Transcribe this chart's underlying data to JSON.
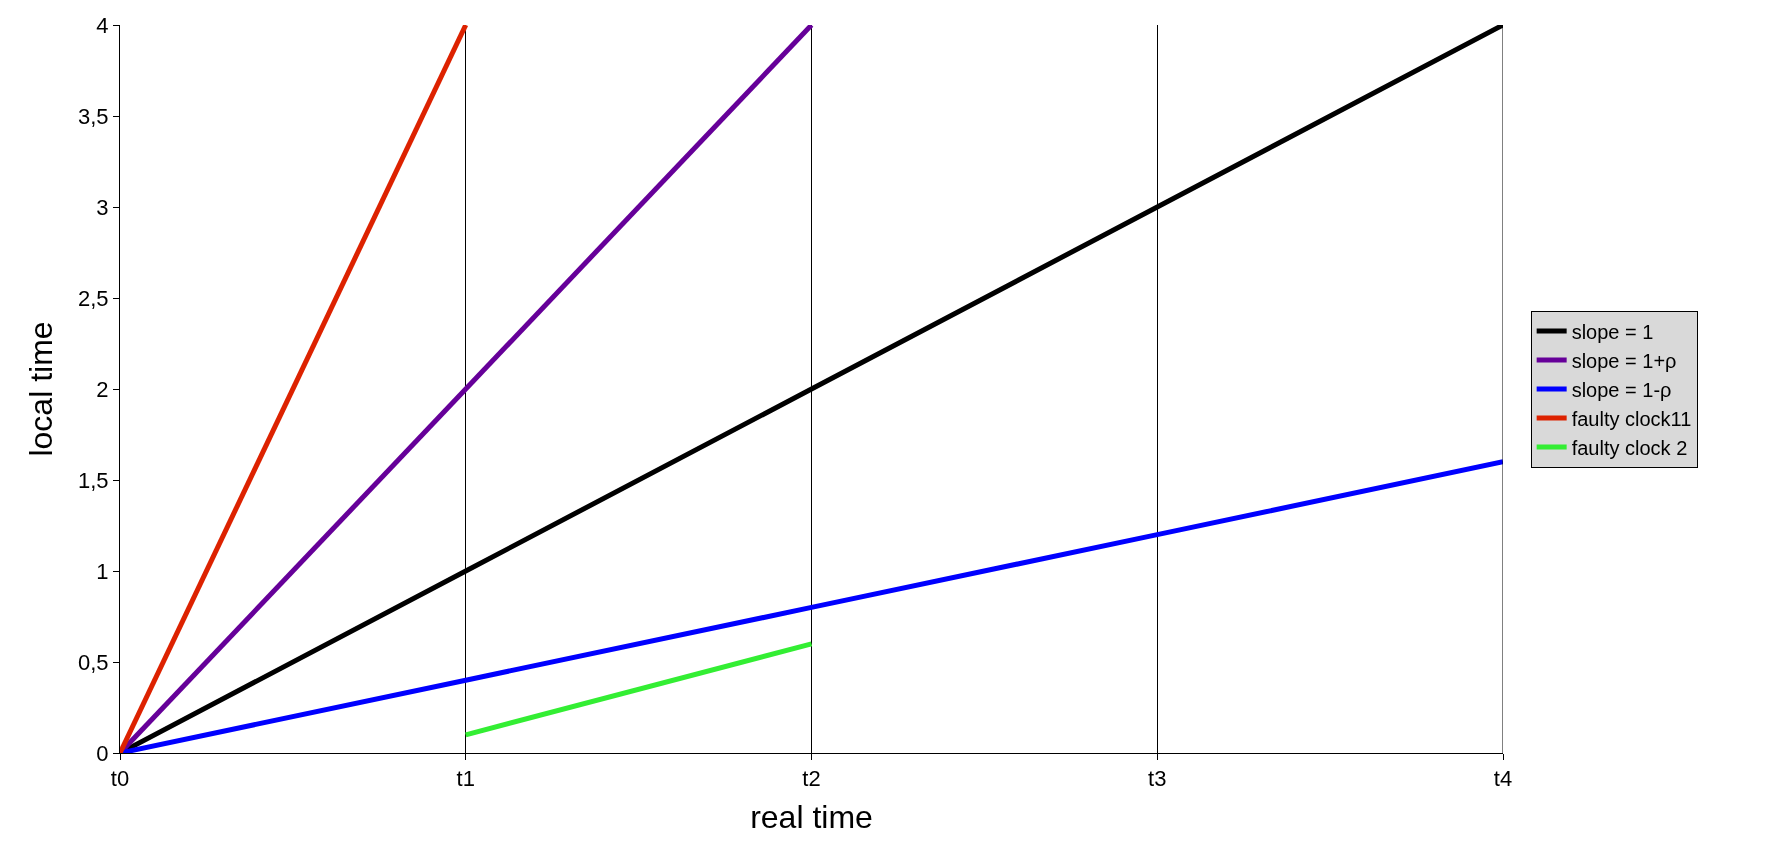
{
  "chart_data": {
    "type": "line",
    "xlabel": "real time",
    "ylabel": "local time",
    "categories": [
      "t0",
      "t1",
      "t2",
      "t3",
      "t4"
    ],
    "ylim": [
      0,
      4
    ],
    "yticks": [
      {
        "value": 0,
        "label": "0"
      },
      {
        "value": 0.5,
        "label": "0,5"
      },
      {
        "value": 1,
        "label": "1"
      },
      {
        "value": 1.5,
        "label": "1,5"
      },
      {
        "value": 2,
        "label": "2"
      },
      {
        "value": 2.5,
        "label": "2,5"
      },
      {
        "value": 3,
        "label": "3"
      },
      {
        "value": 3.5,
        "label": "3,5"
      },
      {
        "value": 4,
        "label": "4"
      }
    ],
    "grid": "x",
    "legend": "right",
    "marker": "none",
    "line_style": "solid",
    "series": [
      {
        "name": "slope = 1",
        "color": "#000000",
        "values": [
          0,
          1,
          2,
          3,
          4
        ]
      },
      {
        "name": "slope = 1+ρ",
        "color": "#660099",
        "values": [
          0,
          2,
          4,
          null,
          null
        ]
      },
      {
        "name": "slope = 1-ρ",
        "color": "#0000ff",
        "values": [
          0,
          0.4,
          0.8,
          1.2,
          1.6
        ]
      },
      {
        "name": "faulty clock11",
        "color": "#dd2200",
        "values": [
          0,
          4,
          null,
          null,
          null
        ]
      },
      {
        "name": "faulty clock 2",
        "color": "#33ee33",
        "values": [
          null,
          0.1,
          0.6,
          null,
          null
        ]
      }
    ]
  }
}
